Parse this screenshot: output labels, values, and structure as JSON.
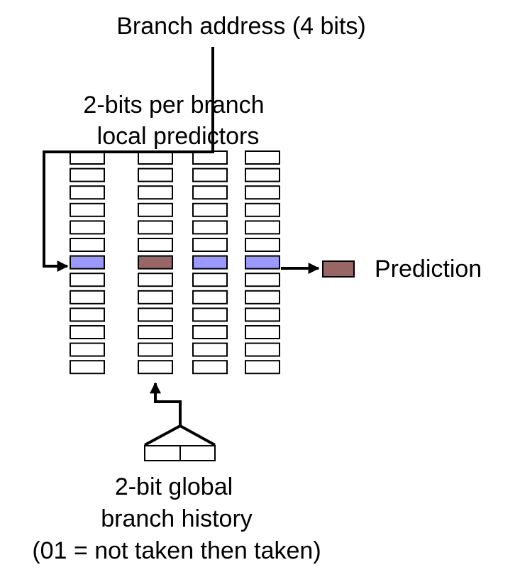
{
  "labels": {
    "branch_address": "Branch address (4 bits)",
    "local_predictors_line1": "2-bits per branch",
    "local_predictors_line2": "local predictors",
    "prediction": "Prediction",
    "global_history_line1": "2-bit global",
    "global_history_line2": "branch history",
    "global_history_line3": "(01 = not taken then taken)"
  },
  "predictor_table": {
    "column_count": 4,
    "rows_per_column": 13,
    "indexed_row_number": 7,
    "selected_column_number": 2
  },
  "global_history": {
    "bit_count": 2
  },
  "colors": {
    "indexed_entry": "#9999FF",
    "selected_entry": "#996666",
    "prediction_box": "#996666",
    "cell_border": "#000000"
  }
}
